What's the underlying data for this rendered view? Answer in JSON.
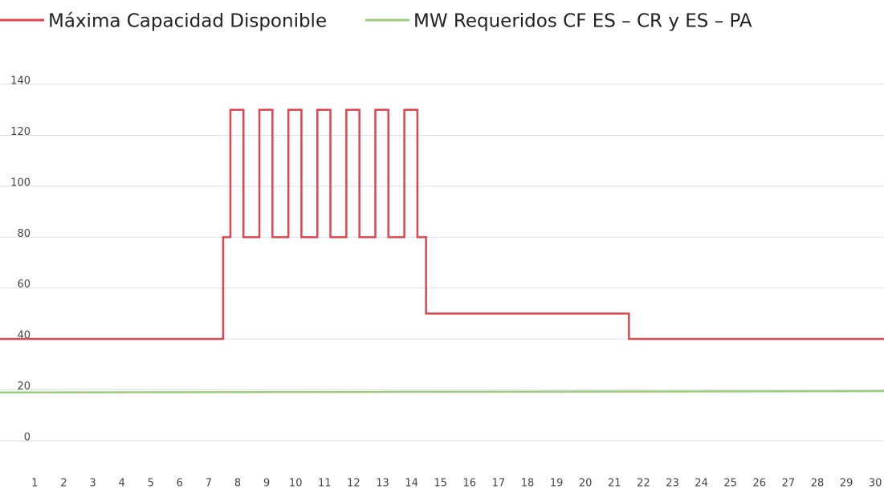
{
  "chart_data": {
    "type": "line",
    "series": [
      {
        "name": "Máxima Capacidad Disponible",
        "color": "#e0454f",
        "x": [
          -0.2,
          7.5,
          7.5,
          7.75,
          7.75,
          8.2,
          8.2,
          8.75,
          8.75,
          9.2,
          9.2,
          9.75,
          9.75,
          10.2,
          10.2,
          10.75,
          10.75,
          11.2,
          11.2,
          11.75,
          11.75,
          12.2,
          12.2,
          12.75,
          12.75,
          13.2,
          13.2,
          13.75,
          13.75,
          14.2,
          14.2,
          14.5,
          14.5,
          21.5,
          21.5,
          30.3
        ],
        "values": [
          40,
          40,
          80,
          80,
          130,
          130,
          80,
          80,
          130,
          130,
          80,
          80,
          130,
          130,
          80,
          80,
          130,
          130,
          80,
          80,
          130,
          130,
          80,
          80,
          130,
          130,
          80,
          80,
          130,
          130,
          80,
          80,
          50,
          50,
          40,
          40
        ]
      },
      {
        "name": "MW Requeridos CF ES – CR y ES – PA",
        "color": "#9ccc7a",
        "x": [
          -0.2,
          30.3
        ],
        "values": [
          19,
          19.5
        ]
      }
    ],
    "xlim": [
      -0.2,
      30.3
    ],
    "xticks": [
      1,
      2,
      3,
      4,
      5,
      6,
      7,
      8,
      9,
      10,
      11,
      12,
      13,
      14,
      15,
      16,
      17,
      18,
      19,
      20,
      21,
      22,
      23,
      24,
      25,
      26,
      27,
      28,
      29,
      30
    ],
    "ylim": [
      -12,
      150
    ],
    "yticks": [
      0,
      20,
      40,
      60,
      80,
      100,
      120,
      140
    ],
    "grid": true
  }
}
